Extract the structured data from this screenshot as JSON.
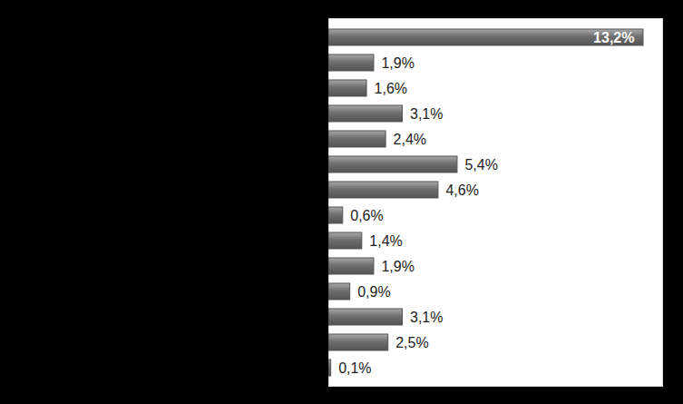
{
  "chart_data": {
    "type": "bar",
    "orientation": "horizontal",
    "categories": [
      null,
      null,
      null,
      null,
      null,
      null,
      null,
      null,
      null,
      null,
      null,
      null,
      null,
      null
    ],
    "values": [
      13.2,
      1.9,
      1.6,
      3.1,
      2.4,
      5.4,
      4.6,
      0.6,
      1.4,
      1.9,
      0.9,
      3.1,
      2.5,
      0.1
    ],
    "value_labels": [
      "13,2%",
      "1,9%",
      "1,6%",
      "3,1%",
      "2,4%",
      "5,4%",
      "4,6%",
      "0,6%",
      "1,4%",
      "1,9%",
      "0,9%",
      "3,1%",
      "2,5%",
      "0,1%"
    ],
    "color": "#6f6f6f",
    "xlim": [
      0,
      14
    ],
    "data_labels": true,
    "tick_labels": false,
    "grid": false
  }
}
